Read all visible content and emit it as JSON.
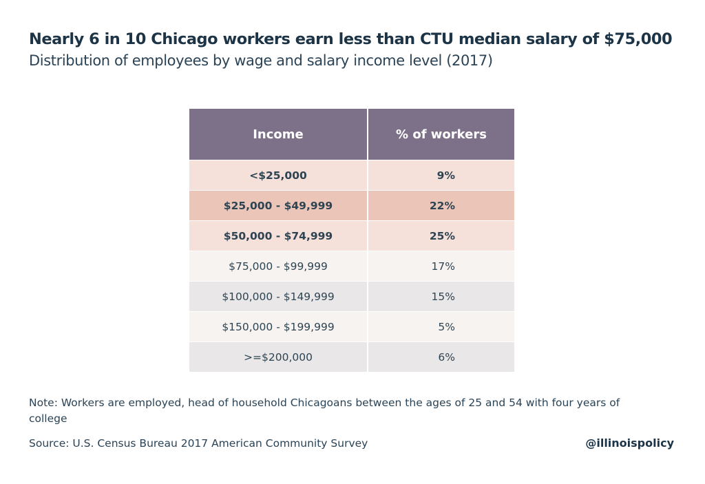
{
  "chart_data": {
    "type": "table",
    "title": "Nearly 6 in 10 Chicago workers earn less than CTU median salary of $75,000",
    "subtitle": "Distribution of employees by wage and salary income level (2017)",
    "columns": [
      "Income",
      "% of workers"
    ],
    "rows": [
      {
        "income": "<$25,000",
        "pct": "9%",
        "value": 9,
        "highlight": true,
        "bg": "#f5e0da"
      },
      {
        "income": "$25,000 - $49,999",
        "pct": "22%",
        "value": 22,
        "highlight": true,
        "bg": "#ecc5b9"
      },
      {
        "income": "$50,000 - $74,999",
        "pct": "25%",
        "value": 25,
        "highlight": true,
        "bg": "#f5e0da"
      },
      {
        "income": "$75,000 - $99,999",
        "pct": "17%",
        "value": 17,
        "highlight": false,
        "bg": "#f6f3f1"
      },
      {
        "income": "$100,000 - $149,999",
        "pct": "15%",
        "value": 15,
        "highlight": false,
        "bg": "#e9e7e8"
      },
      {
        "income": "$150,000 - $199,999",
        "pct": "5%",
        "value": 5,
        "highlight": false,
        "bg": "#f6f3f1"
      },
      {
        "income": ">=$200,000",
        "pct": "6%",
        "value": 6,
        "highlight": false,
        "bg": "#e9e7e8"
      }
    ],
    "header_color": "#7d7189"
  },
  "note": "Note: Workers are employed, head of household Chicagoans between the ages of 25 and 54 with four years of college",
  "source": "Source: U.S. Census Bureau 2017 American Community Survey",
  "handle": "@illinoispolicy"
}
